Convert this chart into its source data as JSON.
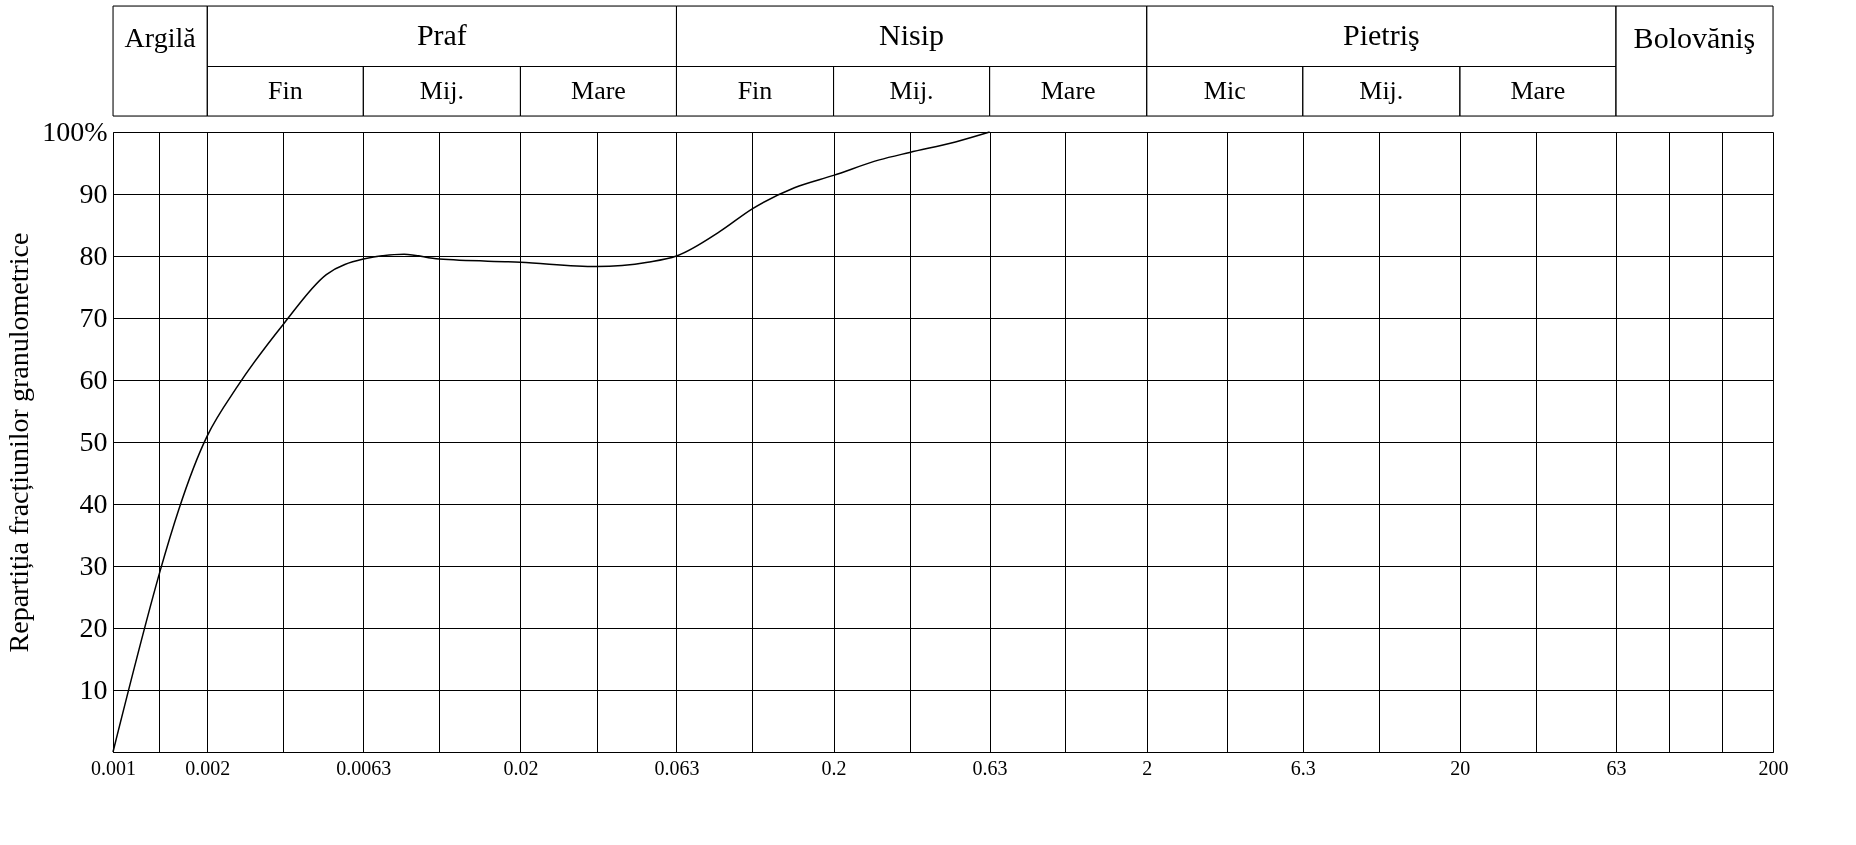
{
  "chart_data": {
    "type": "line",
    "ylabel": "Repartiția fracțiunilor granulometrice",
    "annotations": [
      "Argilă",
      "Praf",
      "Fin",
      "Mij.",
      "Mare",
      "Nisip",
      "Fin",
      "Mij.",
      "Mare",
      "Pietriş",
      "Mic",
      "Mij.",
      "Mare",
      "Bolovăniş"
    ],
    "x": [
      0.001,
      0.002,
      0.0025,
      0.0035,
      0.0048,
      0.0063,
      0.0085,
      0.011,
      0.02,
      0.035,
      0.051,
      0.063,
      0.087,
      0.11,
      0.15,
      0.2,
      0.28,
      0.35,
      0.49,
      0.63
    ],
    "series": [
      {
        "color": "#000000",
        "values": [
          0,
          51,
          59,
          69,
          77,
          79.5,
          80.3,
          79.5,
          79,
          78.3,
          79,
          80,
          84,
          87.6,
          91,
          93,
          95.5,
          96.7,
          98.4,
          100
        ]
      }
    ],
    "xlim": [
      0.001,
      200
    ],
    "ylim": [
      0,
      100
    ],
    "xticks": [
      0.001,
      {
        "value": 0.0014,
        "label": null
      },
      0.002,
      {
        "value": 0.0035,
        "label": null
      },
      0.0063,
      {
        "value": 0.011,
        "label": null
      },
      0.02,
      {
        "value": 0.035,
        "label": null
      },
      0.063,
      {
        "value": 0.11,
        "label": null
      },
      0.2,
      {
        "value": 0.35,
        "label": null
      },
      0.63,
      {
        "value": 1.1,
        "label": null
      },
      2,
      {
        "value": 3.6,
        "label": null
      },
      6.3,
      {
        "value": 11,
        "label": null
      },
      20,
      {
        "value": 35,
        "label": null
      },
      63,
      {
        "value": 93,
        "label": null
      },
      {
        "value": 137,
        "label": null
      },
      200
    ],
    "yticks": [
      {
        "value": 0,
        "label": null
      },
      10,
      20,
      30,
      40,
      50,
      60,
      70,
      80,
      90,
      {
        "value": 100,
        "label": "100%"
      }
    ],
    "log": "x",
    "grid": true
  }
}
